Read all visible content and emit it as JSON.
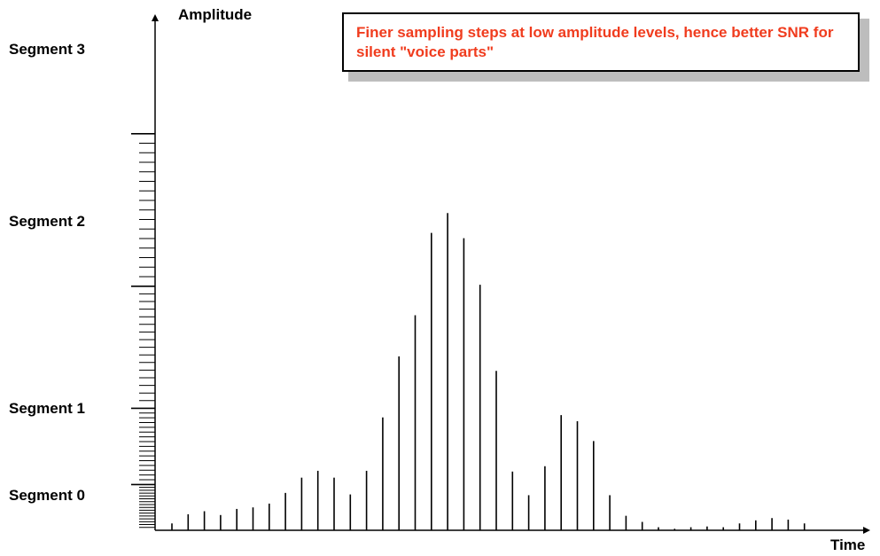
{
  "axes": {
    "y_label": "Amplitude",
    "x_label": "Time"
  },
  "segments": [
    {
      "label": "Segment 3"
    },
    {
      "label": "Segment 2"
    },
    {
      "label": "Segment 1"
    },
    {
      "label": "Segment 0"
    }
  ],
  "callout": {
    "text": "Finer sampling steps at low amplitude levels, hence better SNR for silent \"voice parts\"",
    "color": "#f03c1e"
  },
  "quantization": {
    "segment_ranges": [
      [
        0,
        3
      ],
      [
        3,
        8
      ],
      [
        8,
        16
      ],
      [
        16,
        26
      ]
    ],
    "steps_per_segment": 16
  },
  "samples": [
    0.45,
    1.05,
    1.25,
    1.0,
    1.4,
    1.5,
    1.75,
    2.45,
    3.45,
    3.9,
    3.45,
    2.35,
    3.9,
    7.4,
    11.4,
    14.1,
    19.5,
    20.8,
    19.15,
    16.1,
    10.45,
    3.85,
    2.3,
    4.2,
    7.55,
    7.15,
    5.85,
    2.3,
    0.95,
    0.55,
    0.2,
    0.1,
    0.2,
    0.25,
    0.2,
    0.45,
    0.65,
    0.8,
    0.7,
    0.45
  ]
}
